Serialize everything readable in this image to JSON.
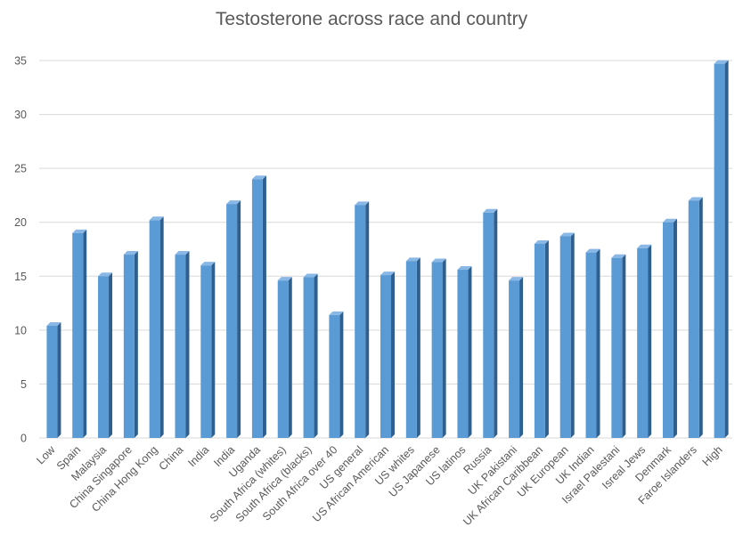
{
  "chart_data": {
    "type": "bar",
    "title": "Testosterone across race and country",
    "xlabel": "",
    "ylabel": "",
    "ylim": [
      0,
      35
    ],
    "yticks": [
      0,
      5,
      10,
      15,
      20,
      25,
      30,
      35
    ],
    "grid": true,
    "legend": "none",
    "categories": [
      "Low",
      "Spain",
      "Malaysia",
      "China Singapore",
      "China Hong Kong",
      "China",
      "India",
      "India",
      "Uganda",
      "South Africa (whites)",
      "South Africa (blacks)",
      "South Africa over 40",
      "US general",
      "US African American",
      "US whites",
      "US Japanese",
      "US latinos",
      "Russia",
      "UK Pakistani",
      "UK African Caribbean",
      "UK European",
      "UK Indian",
      "Israel Palestani",
      "Isreal Jews",
      "Denmark",
      "Faroe Islanders",
      "High"
    ],
    "values": [
      10.4,
      19,
      15,
      17,
      20.2,
      17,
      16,
      21.7,
      24,
      14.6,
      14.9,
      11.4,
      21.6,
      15.1,
      16.4,
      16.3,
      15.6,
      20.9,
      14.6,
      18,
      18.7,
      17.2,
      16.7,
      17.6,
      20,
      22,
      34.7
    ],
    "colors": {
      "bar_front": "#5b9bd5",
      "bar_side": "#2e5f8f",
      "bar_top": "#8ab8e6"
    }
  }
}
